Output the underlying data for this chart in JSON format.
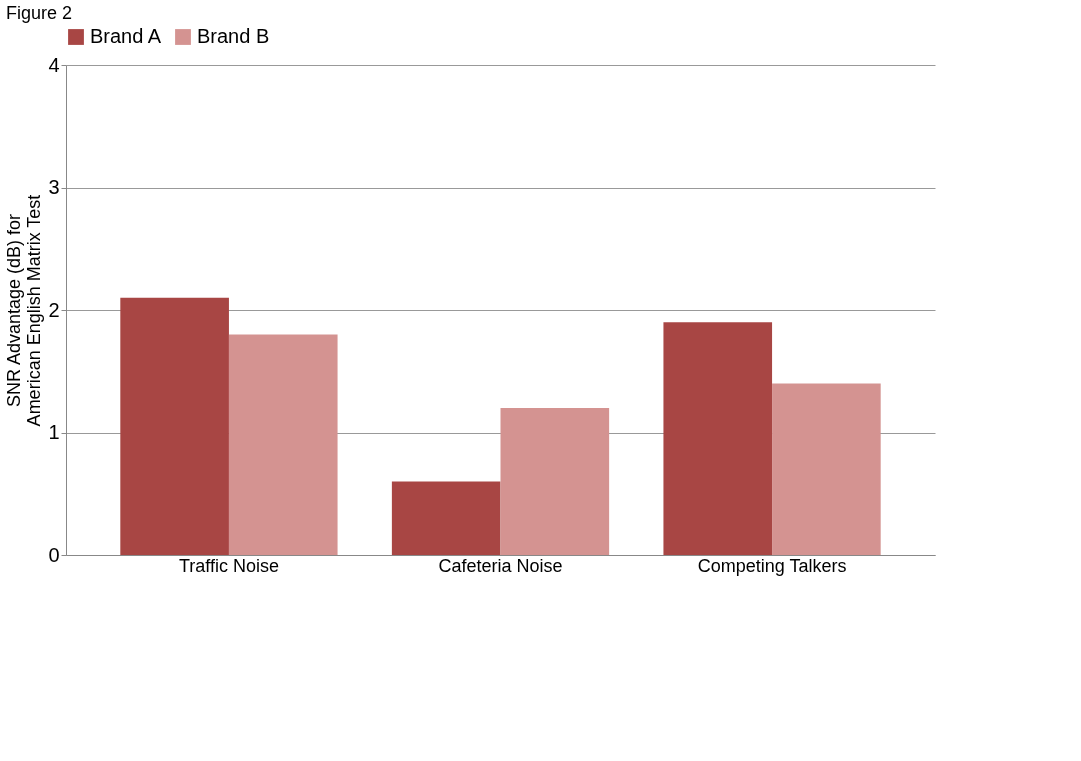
{
  "chart_data": {
    "type": "bar",
    "title": "Figure 2",
    "ylabel": "SNR Advantage (dB) for\nAmerican English Matrix Test",
    "categories": [
      "Traffic Noise",
      "Cafeteria Noise",
      "Competing Talkers"
    ],
    "series": [
      {
        "name": "Brand A",
        "color": "#a84644",
        "values": [
          2.1,
          0.6,
          1.9
        ]
      },
      {
        "name": "Brand B",
        "color": "#d49391",
        "values": [
          1.8,
          1.2,
          1.4
        ]
      }
    ],
    "ylim": [
      0,
      4
    ],
    "yticks": [
      0,
      1,
      2,
      3,
      4
    ],
    "grid": "y",
    "legend": "top"
  }
}
